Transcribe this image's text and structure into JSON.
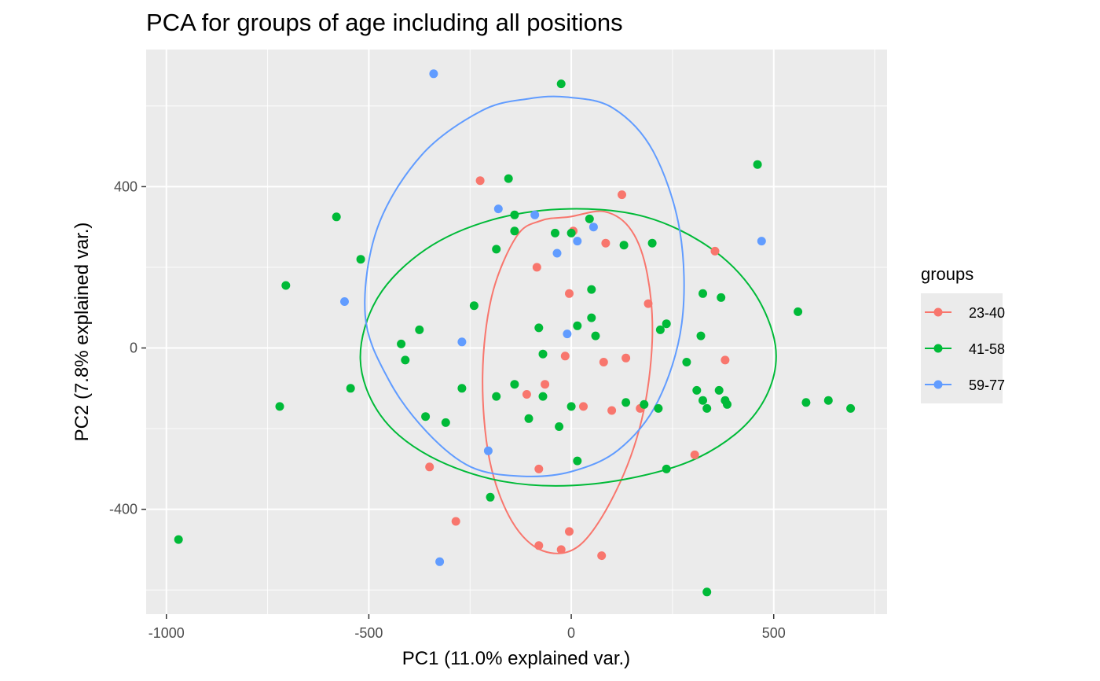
{
  "chart_data": {
    "type": "scatter",
    "title": "PCA for groups of age including all positions",
    "xlabel": "PC1 (11.0% explained var.)",
    "ylabel": "PC2 (7.8% explained var.)",
    "xlim": [
      -1050,
      780
    ],
    "ylim": [
      -660,
      740
    ],
    "x_ticks": [
      -1000,
      -500,
      0,
      500
    ],
    "x_tick_labels": [
      "-1000",
      "-500",
      "0",
      "500"
    ],
    "y_ticks": [
      -400,
      0,
      400
    ],
    "y_tick_labels": [
      "-400",
      "0",
      "400"
    ],
    "grid": true,
    "legend": {
      "title": "groups",
      "position": "right"
    },
    "series": [
      {
        "name": "23-40",
        "color": "#F8766D",
        "points": [
          [
            -225,
            415
          ],
          [
            125,
            380
          ],
          [
            5,
            290
          ],
          [
            85,
            260
          ],
          [
            355,
            240
          ],
          [
            -85,
            200
          ],
          [
            -5,
            135
          ],
          [
            190,
            110
          ],
          [
            -15,
            -20
          ],
          [
            80,
            -35
          ],
          [
            135,
            -25
          ],
          [
            380,
            -30
          ],
          [
            -65,
            -90
          ],
          [
            -110,
            -115
          ],
          [
            30,
            -145
          ],
          [
            100,
            -155
          ],
          [
            170,
            -150
          ],
          [
            305,
            -265
          ],
          [
            -350,
            -295
          ],
          [
            -80,
            -300
          ],
          [
            -285,
            -430
          ],
          [
            -5,
            -455
          ],
          [
            -80,
            -490
          ],
          [
            -25,
            -500
          ],
          [
            75,
            -515
          ]
        ],
        "ellipse": [
          [
            -5,
            325
          ],
          [
            83,
            338
          ],
          [
            149,
            291
          ],
          [
            188,
            182
          ],
          [
            200,
            18
          ],
          [
            174,
            -178
          ],
          [
            110,
            -356
          ],
          [
            21,
            -489
          ],
          [
            -70,
            -503
          ],
          [
            -147,
            -429
          ],
          [
            -202,
            -277
          ],
          [
            -219,
            -69
          ],
          [
            -196,
            130
          ],
          [
            -135,
            277
          ],
          [
            -74,
            316
          ]
        ]
      },
      {
        "name": "41-58",
        "color": "#00BA38",
        "points": [
          [
            -25,
            655
          ],
          [
            460,
            455
          ],
          [
            -155,
            420
          ],
          [
            -580,
            325
          ],
          [
            -140,
            330
          ],
          [
            45,
            320
          ],
          [
            -140,
            290
          ],
          [
            -40,
            285
          ],
          [
            0,
            285
          ],
          [
            -185,
            245
          ],
          [
            130,
            255
          ],
          [
            200,
            260
          ],
          [
            -520,
            220
          ],
          [
            -705,
            155
          ],
          [
            50,
            145
          ],
          [
            325,
            135
          ],
          [
            370,
            125
          ],
          [
            -240,
            105
          ],
          [
            560,
            90
          ],
          [
            50,
            75
          ],
          [
            -80,
            50
          ],
          [
            15,
            55
          ],
          [
            235,
            60
          ],
          [
            220,
            45
          ],
          [
            -375,
            45
          ],
          [
            60,
            30
          ],
          [
            320,
            30
          ],
          [
            -420,
            10
          ],
          [
            -70,
            -15
          ],
          [
            -410,
            -30
          ],
          [
            285,
            -35
          ],
          [
            -140,
            -90
          ],
          [
            -545,
            -100
          ],
          [
            -270,
            -100
          ],
          [
            -185,
            -120
          ],
          [
            -70,
            -120
          ],
          [
            310,
            -105
          ],
          [
            365,
            -105
          ],
          [
            0,
            -145
          ],
          [
            135,
            -135
          ],
          [
            180,
            -140
          ],
          [
            215,
            -150
          ],
          [
            325,
            -130
          ],
          [
            335,
            -150
          ],
          [
            380,
            -130
          ],
          [
            385,
            -140
          ],
          [
            580,
            -135
          ],
          [
            635,
            -130
          ],
          [
            690,
            -150
          ],
          [
            -720,
            -145
          ],
          [
            -360,
            -170
          ],
          [
            -105,
            -175
          ],
          [
            -310,
            -185
          ],
          [
            -30,
            -195
          ],
          [
            15,
            -280
          ],
          [
            235,
            -300
          ],
          [
            -200,
            -370
          ],
          [
            -970,
            -475
          ],
          [
            335,
            -605
          ]
        ],
        "ellipse": [
          [
            -5,
            345
          ],
          [
            183,
            325
          ],
          [
            342,
            249
          ],
          [
            450,
            140
          ],
          [
            504,
            7
          ],
          [
            486,
            -110
          ],
          [
            406,
            -213
          ],
          [
            264,
            -292
          ],
          [
            44,
            -338
          ],
          [
            -167,
            -331
          ],
          [
            -350,
            -268
          ],
          [
            -471,
            -167
          ],
          [
            -521,
            -27
          ],
          [
            -478,
            125
          ],
          [
            -359,
            245
          ],
          [
            -195,
            318
          ]
        ]
      },
      {
        "name": "59-77",
        "color": "#619CFF",
        "points": [
          [
            -340,
            680
          ],
          [
            -180,
            345
          ],
          [
            -90,
            330
          ],
          [
            -560,
            115
          ],
          [
            -35,
            235
          ],
          [
            15,
            265
          ],
          [
            55,
            300
          ],
          [
            470,
            265
          ],
          [
            -270,
            15
          ],
          [
            -10,
            35
          ],
          [
            -205,
            -255
          ],
          [
            -325,
            -530
          ]
        ],
        "ellipse": [
          [
            -10,
            622
          ],
          [
            103,
            595
          ],
          [
            202,
            488
          ],
          [
            268,
            291
          ],
          [
            273,
            61
          ],
          [
            213,
            -134
          ],
          [
            116,
            -253
          ],
          [
            -2,
            -307
          ],
          [
            -123,
            -318
          ],
          [
            -248,
            -295
          ],
          [
            -356,
            -209
          ],
          [
            -451,
            -79
          ],
          [
            -509,
            81
          ],
          [
            -479,
            297
          ],
          [
            -370,
            478
          ],
          [
            -222,
            588
          ],
          [
            -106,
            618
          ]
        ]
      }
    ]
  }
}
